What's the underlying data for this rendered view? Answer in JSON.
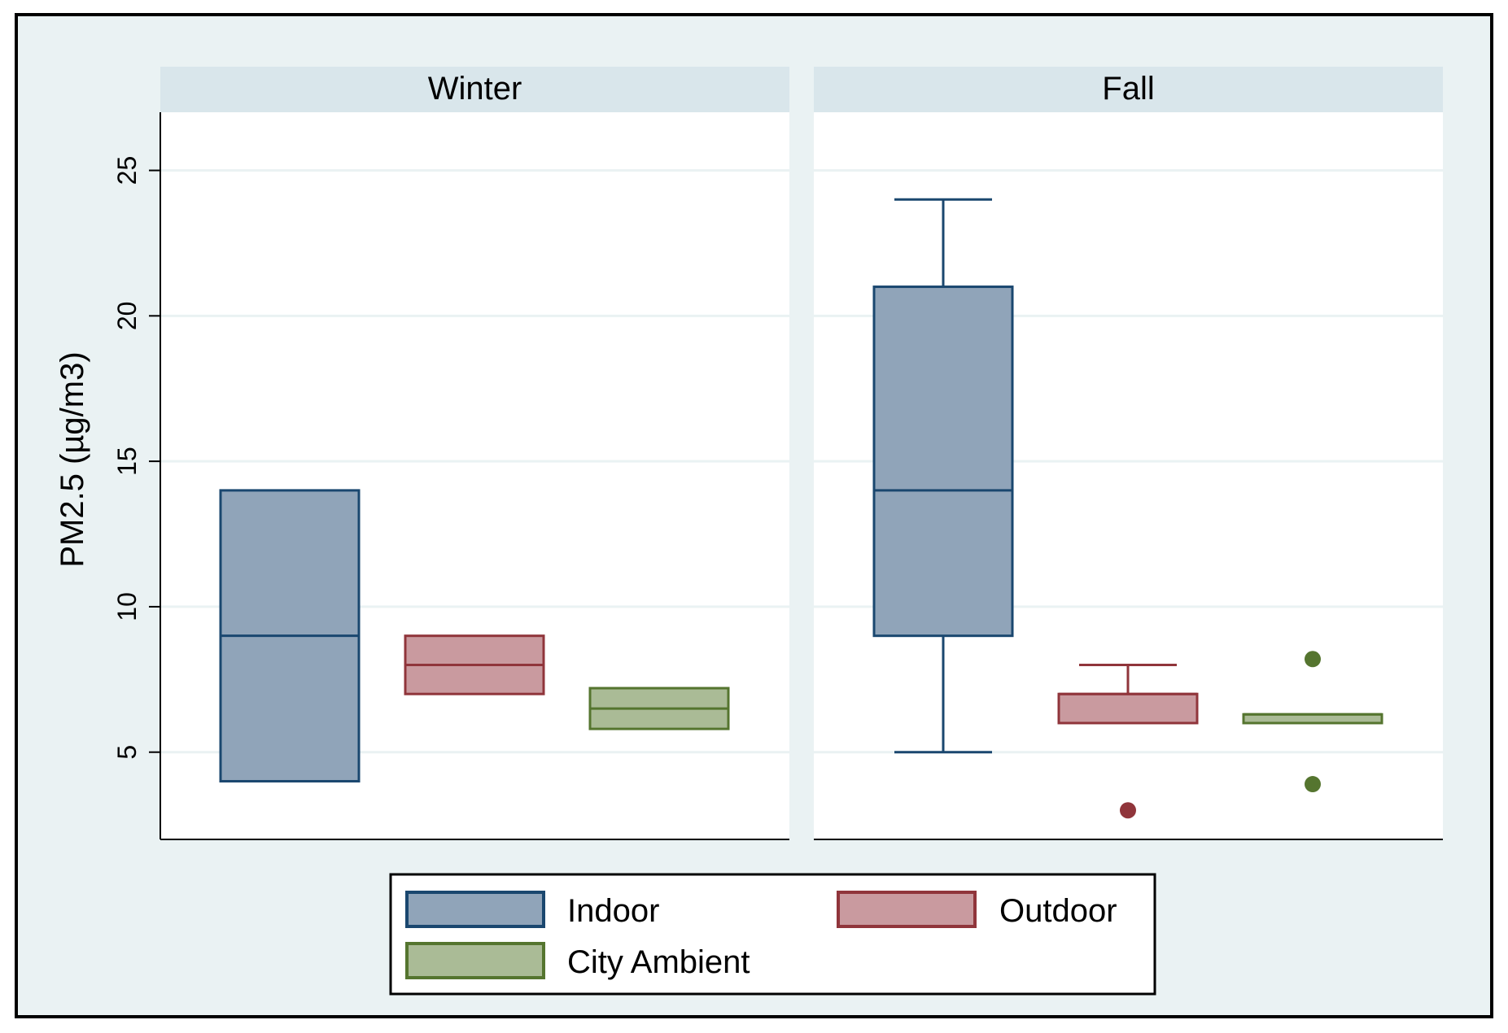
{
  "chart_data": {
    "type": "box",
    "ylabel": "PM2.5 (µg/m3)",
    "ylim": [
      2,
      27
    ],
    "yticks": [
      5,
      10,
      15,
      20,
      25
    ],
    "grid": true,
    "legend_position": "bottom",
    "colors": {
      "background": "#eaf2f3",
      "plot": "#ffffff",
      "header": "#d9e6eb",
      "grid": "#eaf2f3",
      "Indoor": {
        "fill": "#90a4b9",
        "line": "#1a476f"
      },
      "Outdoor": {
        "fill": "#c99a9f",
        "line": "#90353b"
      },
      "City Ambient": {
        "fill": "#aabb96",
        "line": "#55752f"
      }
    },
    "series_names": [
      "Indoor",
      "Outdoor",
      "City Ambient"
    ],
    "panels": [
      {
        "title": "Winter",
        "boxes": [
          {
            "series": "Indoor",
            "min": 4,
            "q1": 4,
            "median": 9,
            "q3": 14,
            "max": 14,
            "outliers": []
          },
          {
            "series": "Outdoor",
            "min": 7,
            "q1": 7,
            "median": 8,
            "q3": 9,
            "max": 9,
            "outliers": []
          },
          {
            "series": "City Ambient",
            "min": 5.8,
            "q1": 5.8,
            "median": 6.5,
            "q3": 7.2,
            "max": 7.2,
            "outliers": []
          }
        ]
      },
      {
        "title": "Fall",
        "boxes": [
          {
            "series": "Indoor",
            "min": 5,
            "q1": 9,
            "median": 14,
            "q3": 21,
            "max": 24,
            "outliers": []
          },
          {
            "series": "Outdoor",
            "min": 6,
            "q1": 6,
            "median": 7,
            "q3": 7,
            "max": 8,
            "outliers": [
              3
            ]
          },
          {
            "series": "City Ambient",
            "min": 6,
            "q1": 6,
            "median": 6.3,
            "q3": 6.3,
            "max": 6.3,
            "outliers": [
              8.2,
              3.9
            ]
          }
        ]
      }
    ]
  }
}
